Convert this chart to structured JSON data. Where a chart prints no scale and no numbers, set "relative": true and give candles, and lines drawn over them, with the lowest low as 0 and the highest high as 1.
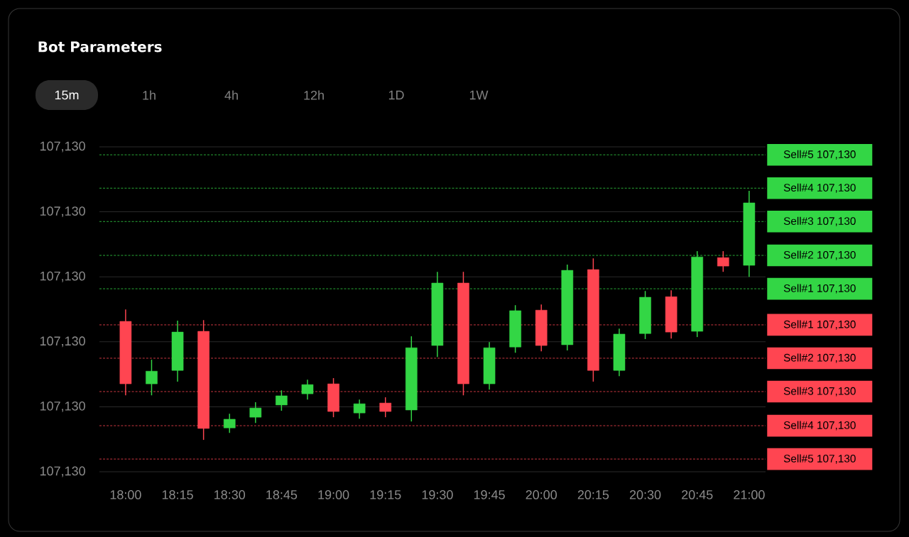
{
  "chart_data": {
    "type": "candlestick",
    "title": "Bot Parameters",
    "annotations": [
      "15m",
      "1h",
      "4h",
      "12h",
      "1D",
      "1W",
      "107,130",
      "107,130",
      "107,130",
      "107,130",
      "107,130",
      "107,130"
    ],
    "relative": true,
    "x": [
      18.0,
      18.125,
      18.25,
      18.375,
      18.5,
      18.625,
      18.75,
      18.875,
      19.0,
      19.125,
      19.25,
      19.375,
      19.5,
      19.625,
      19.75,
      19.875,
      20.0,
      20.125,
      20.25,
      20.375,
      20.5,
      20.625,
      20.75,
      20.875,
      21.0
    ],
    "ohlc": [
      [
        0.476,
        0.524,
        0.179,
        0.225
      ],
      [
        0.225,
        0.322,
        0.179,
        0.276
      ],
      [
        0.279,
        0.479,
        0.234,
        0.433
      ],
      [
        0.436,
        0.481,
        0.0,
        0.046
      ],
      [
        0.048,
        0.105,
        0.028,
        0.083
      ],
      [
        0.091,
        0.151,
        0.068,
        0.128
      ],
      [
        0.14,
        0.199,
        0.117,
        0.177
      ],
      [
        0.185,
        0.242,
        0.162,
        0.222
      ],
      [
        0.225,
        0.248,
        0.091,
        0.114
      ],
      [
        0.108,
        0.162,
        0.085,
        0.145
      ],
      [
        0.148,
        0.171,
        0.091,
        0.114
      ],
      [
        0.12,
        0.416,
        0.074,
        0.37
      ],
      [
        0.379,
        0.675,
        0.333,
        0.63
      ],
      [
        0.63,
        0.675,
        0.179,
        0.225
      ],
      [
        0.225,
        0.393,
        0.202,
        0.37
      ],
      [
        0.373,
        0.541,
        0.35,
        0.519
      ],
      [
        0.521,
        0.544,
        0.356,
        0.379
      ],
      [
        0.382,
        0.704,
        0.359,
        0.681
      ],
      [
        0.684,
        0.729,
        0.234,
        0.279
      ],
      [
        0.279,
        0.447,
        0.256,
        0.425
      ],
      [
        0.427,
        0.598,
        0.405,
        0.573
      ],
      [
        0.575,
        0.601,
        0.407,
        0.433
      ],
      [
        0.436,
        0.758,
        0.413,
        0.735
      ],
      [
        0.732,
        0.758,
        0.675,
        0.698
      ],
      [
        0.701,
        1.0,
        0.655,
        0.952
      ]
    ],
    "colors": [
      "#ff4551",
      "#33d645",
      "#33d645",
      "#ff4551",
      "#33d645",
      "#33d645",
      "#33d645",
      "#33d645",
      "#ff4551",
      "#33d645",
      "#ff4551",
      "#33d645",
      "#33d645",
      "#ff4551",
      "#33d645",
      "#33d645",
      "#ff4551",
      "#33d645",
      "#ff4551",
      "#33d645",
      "#33d645",
      "#ff4551",
      "#33d645",
      "#ff4551",
      "#33d645"
    ],
    "xlim": [
      17.874,
      21.079
    ],
    "xticks": [
      {
        "value": 18,
        "label": "18:00"
      },
      {
        "value": 18.25,
        "label": "18:15"
      },
      {
        "value": 18.5,
        "label": "18:30"
      },
      {
        "value": 18.75,
        "label": "18:45"
      },
      {
        "value": 19,
        "label": "19:00"
      },
      {
        "value": 19.25,
        "label": "19:15"
      },
      {
        "value": 19.5,
        "label": "19:30"
      },
      {
        "value": 19.75,
        "label": "19:45"
      },
      {
        "value": 20,
        "label": "20:00"
      },
      {
        "value": 20.25,
        "label": "20:15"
      },
      {
        "value": 20.5,
        "label": "20:30"
      },
      {
        "value": 20.75,
        "label": "20:45"
      },
      {
        "value": 21,
        "label": "21:00"
      }
    ],
    "ylim": [
      -0.128,
      1.177
    ],
    "grid": "y",
    "ref_lines": [
      {
        "axis": "y",
        "value": 1.145,
        "label": "Sell#5 107,130",
        "color": "#33d645",
        "line_style": "dashed"
      },
      {
        "axis": "y",
        "value": 1.011,
        "label": "Sell#4 107,130",
        "color": "#33d645",
        "line_style": "dashed"
      },
      {
        "axis": "y",
        "value": 0.877,
        "label": "Sell#3 107,130",
        "color": "#33d645",
        "line_style": "dashed"
      },
      {
        "axis": "y",
        "value": 0.741,
        "label": "Sell#2 107,130",
        "color": "#33d645",
        "line_style": "dashed"
      },
      {
        "axis": "y",
        "value": 0.607,
        "label": "Sell#1 107,130",
        "color": "#33d645",
        "line_style": "dashed"
      },
      {
        "axis": "y",
        "value": 0.462,
        "label": "Sell#1 107,130",
        "color": "#ff4551",
        "line_style": "dashed"
      },
      {
        "axis": "y",
        "value": 0.328,
        "label": "Sell#2 107,130",
        "color": "#ff4551",
        "line_style": "dashed"
      },
      {
        "axis": "y",
        "value": 0.194,
        "label": "Sell#3 107,130",
        "color": "#ff4551",
        "line_style": "dashed"
      },
      {
        "axis": "y",
        "value": 0.057,
        "label": "Sell#4 107,130",
        "color": "#ff4551",
        "line_style": "dashed"
      },
      {
        "axis": "y",
        "value": -0.077,
        "label": "Sell#5 107,130",
        "color": "#ff4551",
        "line_style": "dashed"
      }
    ]
  }
}
